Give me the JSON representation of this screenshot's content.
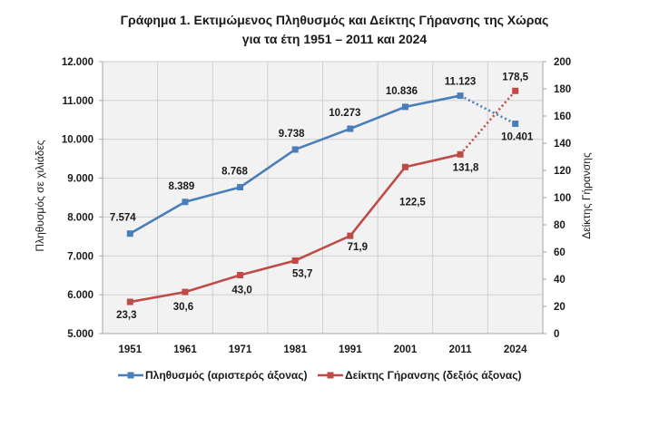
{
  "chart_data": {
    "type": "line",
    "title": "Γράφημα 1. Εκτιμώμενος Πληθυσμός και Δείκτης Γήρανσης της Χώρας",
    "subtitle": "για τα έτη 1951 – 2011 και 2024",
    "categories": [
      "1951",
      "1961",
      "1971",
      "1981",
      "1991",
      "2001",
      "2011",
      "2024"
    ],
    "ylabel_left": "Πληθυσμός σε χιλιάδες",
    "ylabel_right": "Δείκτης Γήρανσης",
    "ylim_left": [
      5000,
      12000
    ],
    "ylim_right": [
      0,
      200
    ],
    "yticks_left": [
      5000,
      6000,
      7000,
      8000,
      9000,
      10000,
      11000,
      12000
    ],
    "yticks_left_labels": [
      "5.000",
      "6.000",
      "7.000",
      "8.000",
      "9.000",
      "10.000",
      "11.000",
      "12.000"
    ],
    "yticks_right": [
      0,
      20,
      40,
      60,
      80,
      100,
      120,
      140,
      160,
      180,
      200
    ],
    "yticks_right_labels": [
      "0",
      "20",
      "40",
      "60",
      "80",
      "100",
      "120",
      "140",
      "160",
      "180",
      "200"
    ],
    "grid": true,
    "legend_position": "bottom",
    "series": [
      {
        "name": "Πληθυσμός (αριστερός άξονας)",
        "axis": "left",
        "color": "#4a7ebb",
        "values": [
          7574,
          8389,
          8768,
          9738,
          10273,
          10836,
          11123,
          10401
        ],
        "labels": [
          "7.574",
          "8.389",
          "8.768",
          "9.738",
          "10.273",
          "10.836",
          "11.123",
          "10.401"
        ],
        "dotted_last_segment": true
      },
      {
        "name": "Δείκτης Γήρανσης (δεξιός άξονας)",
        "axis": "right",
        "color": "#be4b48",
        "values": [
          23.3,
          30.6,
          43.0,
          53.7,
          71.9,
          122.5,
          131.8,
          178.5
        ],
        "labels": [
          "23,3",
          "30,6",
          "43,0",
          "53,7",
          "71,9",
          "122,5",
          "131,8",
          "178,5"
        ],
        "dotted_last_segment": true
      }
    ]
  }
}
